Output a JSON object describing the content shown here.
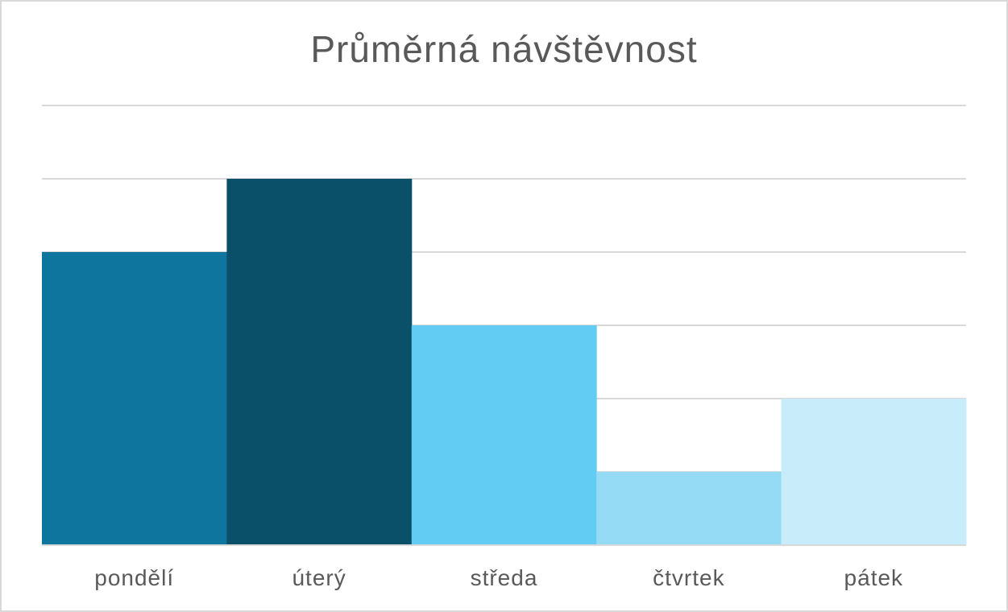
{
  "chart_data": {
    "type": "bar",
    "title": "Průměrná návštěvnost",
    "categories": [
      "pondělí",
      "úterý",
      "středa",
      "čtvrtek",
      "pátek"
    ],
    "values": [
      4,
      5,
      3,
      1,
      2
    ],
    "ylim": [
      0,
      6
    ],
    "grid": true,
    "colors": [
      "#0e759f",
      "#0a5068",
      "#62ccf2",
      "#96dbf5",
      "#c9ecfb"
    ],
    "gridline_color": "#d9d9d9"
  }
}
